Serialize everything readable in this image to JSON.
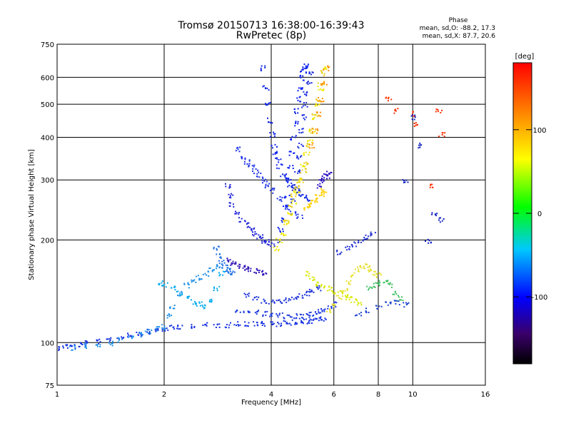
{
  "chart_data": {
    "type": "scatter",
    "title": "Tromsø 20150713 16:38:00-16:39:43",
    "subtitle": "RwPretec (8p)",
    "xlabel": "Frequency [MHz]",
    "ylabel": "Stationary phase Virtual Height [km]",
    "x_scale": "log",
    "y_scale": "log",
    "xlim": [
      1,
      16
    ],
    "ylim": [
      75,
      750
    ],
    "x_ticks": [
      "1",
      "2",
      "4",
      "6",
      "8",
      "10",
      "16"
    ],
    "y_ticks": [
      "75",
      "100",
      "200",
      "300",
      "400",
      "500",
      "600",
      "750"
    ],
    "grid": true,
    "stats": {
      "heading": "Phase",
      "line_o": "mean, sd,O: -88.2, 17.3",
      "line_x": "mean, sd,X: 87.7, 20.6"
    },
    "colorbar": {
      "label": "[deg]",
      "range": [
        -180,
        180
      ],
      "ticks": [
        "100",
        "0",
        "-100"
      ],
      "colors": [
        "#000000",
        "#3a006a",
        "#0000ff",
        "#00c8ff",
        "#00ff00",
        "#ffff00",
        "#ff8000",
        "#ff0000"
      ]
    },
    "series": [
      {
        "x": [
          1.0,
          1.05,
          1.1,
          1.15,
          1.2,
          1.3,
          1.4,
          1.5,
          1.6,
          1.7,
          1.8,
          1.9,
          2.0,
          2.1,
          2.2,
          2.4,
          2.6,
          2.8,
          3.0,
          3.2,
          3.4,
          3.6,
          3.8,
          4.0,
          4.2,
          4.4,
          4.6,
          4.8,
          5.0,
          5.2,
          5.4,
          5.6
        ],
        "y": [
          97,
          98,
          98,
          99,
          100,
          101,
          103,
          104,
          106,
          107,
          108,
          109,
          110,
          111,
          112,
          112,
          113,
          113,
          113,
          114,
          114,
          114,
          114,
          114,
          114,
          115,
          115,
          115,
          116,
          116,
          117,
          118
        ],
        "color": "#1530e0"
      },
      {
        "x": [
          1.0,
          1.1,
          1.2,
          1.3,
          1.4,
          1.5,
          1.6,
          1.7,
          1.8,
          1.9,
          2.0,
          2.05,
          2.1,
          2.2,
          2.3,
          2.4,
          2.5,
          2.6,
          2.7,
          2.8
        ],
        "y": [
          96,
          97,
          98,
          99,
          100,
          102,
          104,
          106,
          108,
          110,
          112,
          120,
          128,
          140,
          148,
          152,
          156,
          160,
          165,
          168
        ],
        "color": "#1e90e8"
      },
      {
        "x": [
          1.95,
          2.0,
          2.1,
          2.2,
          2.3,
          2.4,
          2.5,
          2.6,
          2.7,
          2.8,
          2.9
        ],
        "y": [
          150,
          148,
          145,
          140,
          136,
          132,
          130,
          128,
          133,
          145,
          160
        ],
        "color": "#00aaee"
      },
      {
        "x": [
          2.8,
          2.85,
          2.9,
          2.95,
          3.0,
          3.05,
          3.1
        ],
        "y": [
          190,
          180,
          172,
          168,
          165,
          162,
          160
        ],
        "color": "#1f6fe0"
      },
      {
        "x": [
          3.0,
          3.05,
          3.1,
          3.2,
          3.3,
          3.4,
          3.5,
          3.6,
          3.7,
          3.8,
          3.9,
          4.0
        ],
        "y": [
          290,
          270,
          255,
          240,
          230,
          222,
          215,
          210,
          205,
          200,
          198,
          195
        ],
        "color": "#1e22d8"
      },
      {
        "x": [
          3.0,
          3.1,
          3.2,
          3.3,
          3.4,
          3.5,
          3.6,
          3.7,
          3.8
        ],
        "y": [
          175,
          172,
          170,
          168,
          166,
          165,
          163,
          162,
          160
        ],
        "color": "#3518b8"
      },
      {
        "x": [
          3.2,
          3.3,
          3.4,
          3.5,
          3.6,
          3.7,
          3.8,
          3.9,
          4.0,
          4.2,
          4.4,
          4.6,
          4.8
        ],
        "y": [
          370,
          350,
          340,
          330,
          320,
          310,
          300,
          290,
          280,
          265,
          250,
          240,
          235
        ],
        "color": "#1e32e6"
      },
      {
        "x": [
          3.8,
          3.85,
          3.9,
          3.95,
          4.0,
          4.05,
          4.1,
          4.15,
          4.2,
          4.3,
          4.4,
          4.5,
          4.6,
          4.7,
          4.8,
          4.9,
          5.0
        ],
        "y": [
          640,
          560,
          500,
          450,
          410,
          380,
          360,
          345,
          330,
          310,
          300,
          290,
          285,
          280,
          275,
          270,
          265
        ],
        "color": "#1228e8"
      },
      {
        "x": [
          4.2,
          4.25,
          4.3,
          4.35,
          4.4,
          4.45,
          4.5,
          4.55,
          4.6,
          4.65,
          4.7,
          4.75,
          4.8,
          4.85,
          4.9,
          4.95,
          5.0
        ],
        "y": [
          200,
          215,
          230,
          250,
          270,
          300,
          330,
          360,
          400,
          440,
          480,
          520,
          560,
          600,
          630,
          640,
          650
        ],
        "color": "#0a20f0"
      },
      {
        "x": [
          4.6,
          4.65,
          4.7,
          4.75,
          4.8,
          4.85,
          4.9,
          4.95,
          5.0,
          5.1,
          5.2
        ],
        "y": [
          260,
          290,
          320,
          350,
          380,
          420,
          460,
          500,
          540,
          580,
          620
        ],
        "color": "#1a2cdc"
      },
      {
        "x": [
          4.1,
          4.2,
          4.3,
          4.4,
          4.5,
          4.6,
          4.7,
          4.8,
          4.9,
          5.0,
          5.1,
          5.2,
          5.3,
          5.4,
          5.5,
          5.6
        ],
        "y": [
          190,
          200,
          210,
          225,
          240,
          260,
          280,
          300,
          330,
          360,
          390,
          420,
          460,
          500,
          560,
          640
        ],
        "color": "#f0e800"
      },
      {
        "x": [
          4.4,
          4.5,
          4.6,
          4.7,
          4.8,
          4.9,
          5.0,
          5.1,
          5.2,
          5.3,
          5.4,
          5.5,
          5.6
        ],
        "y": [
          230,
          250,
          270,
          285,
          300,
          320,
          340,
          380,
          420,
          470,
          520,
          580,
          620
        ],
        "color": "#e8d020"
      },
      {
        "x": [
          5.2,
          5.3,
          5.4,
          5.5,
          5.6,
          5.7
        ],
        "y": [
          380,
          420,
          470,
          520,
          580,
          640
        ],
        "color": "#ff9000"
      },
      {
        "x": [
          5.0,
          5.1,
          5.2,
          5.3,
          5.4,
          5.5,
          5.6
        ],
        "y": [
          250,
          255,
          258,
          262,
          268,
          274,
          280
        ],
        "color": "#ffd000"
      },
      {
        "x": [
          5.4,
          5.5,
          5.6,
          5.7,
          5.8
        ],
        "y": [
          290,
          300,
          305,
          310,
          315
        ],
        "color": "#2a10c0"
      },
      {
        "x": [
          5.0,
          5.2,
          5.4,
          5.6,
          5.8,
          6.0,
          6.2,
          6.4,
          6.6,
          6.8,
          7.0
        ],
        "y": [
          160,
          155,
          150,
          148,
          145,
          142,
          140,
          138,
          136,
          133,
          130
        ],
        "color": "#d8e800"
      },
      {
        "x": [
          3.4,
          3.6,
          3.8,
          4.0,
          4.2,
          4.4,
          4.6,
          4.8,
          5.0,
          5.2,
          5.4
        ],
        "y": [
          138,
          135,
          133,
          132,
          133,
          134,
          136,
          138,
          140,
          142,
          145
        ],
        "color": "#1830d8"
      },
      {
        "x": [
          3.2,
          3.4,
          3.6,
          3.8,
          4.0,
          4.2,
          4.4,
          4.6,
          4.8,
          5.0,
          5.2,
          5.4,
          5.6,
          5.8,
          6.0
        ],
        "y": [
          125,
          124,
          123,
          122,
          121,
          121,
          120,
          120,
          120,
          121,
          122,
          124,
          126,
          128,
          130
        ],
        "color": "#1c38e0"
      },
      {
        "x": [
          5.8,
          6.0,
          6.2,
          6.4,
          6.6,
          6.8,
          7.0,
          7.2,
          7.4,
          7.6,
          7.8,
          8.0
        ],
        "y": [
          125,
          130,
          136,
          142,
          150,
          158,
          165,
          168,
          170,
          165,
          160,
          158
        ],
        "color": "#e8e030"
      },
      {
        "x": [
          7.5,
          7.8,
          8.0,
          8.3,
          8.6,
          8.9,
          9.2
        ],
        "y": [
          145,
          148,
          150,
          152,
          148,
          140,
          135
        ],
        "color": "#40c060"
      },
      {
        "x": [
          7.0,
          7.5,
          8.0,
          8.5,
          9.0,
          9.5
        ],
        "y": [
          122,
          125,
          128,
          130,
          132,
          130
        ],
        "color": "#1a40d0"
      },
      {
        "x": [
          6.2,
          6.5,
          6.8,
          7.1,
          7.4,
          7.7
        ],
        "y": [
          185,
          190,
          195,
          200,
          205,
          210
        ],
        "color": "#2230d0"
      },
      {
        "x": [
          8.5,
          9.0,
          10.0,
          10.2,
          11.2,
          11.8,
          12.0
        ],
        "y": [
          520,
          480,
          470,
          440,
          290,
          480,
          410
        ],
        "color": "#ff3000"
      },
      {
        "x": [
          9.5,
          10.0,
          10.5,
          11.0,
          11.5,
          12.0
        ],
        "y": [
          300,
          460,
          380,
          200,
          240,
          230
        ],
        "color": "#1020c0"
      }
    ]
  }
}
